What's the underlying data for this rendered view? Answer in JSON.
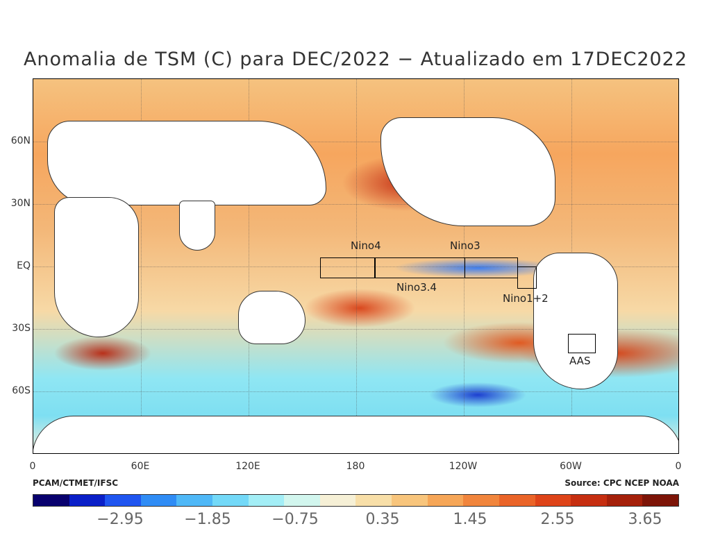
{
  "title": "Anomalia de TSM (C) para DEC/2022 − Atualizado em 17DEC2022",
  "map": {
    "y_ticks": [
      "60N",
      "30N",
      "EQ",
      "30S",
      "60S"
    ],
    "x_ticks": [
      "0",
      "60E",
      "120E",
      "180",
      "120W",
      "60W",
      "0"
    ],
    "regions": [
      "Nino4",
      "Nino3",
      "Nino3.4",
      "Nino1+2",
      "AAS"
    ]
  },
  "credits": {
    "left": "PCAM/CTMET/IFSC",
    "right": "Source: CPC NCEP NOAA"
  },
  "colorbar": {
    "labels": [
      "−2.95",
      "−1.85",
      "−0.75",
      "0.35",
      "1.45",
      "2.55",
      "3.65"
    ],
    "colors": [
      "#08006e",
      "#0a1fc8",
      "#1f55f0",
      "#2f8cf5",
      "#4fb8f7",
      "#73d9f8",
      "#a3eef6",
      "#d2f6ee",
      "#f6f0d6",
      "#f8dfa8",
      "#f8c57c",
      "#f6a657",
      "#f1853c",
      "#ea6428",
      "#de4419",
      "#c62e10",
      "#a5200a",
      "#7d1407"
    ]
  },
  "colors": {
    "land": "#ffffff",
    "cold_anomaly": "#1d3fd0",
    "warm_anomaly": "#c8371a"
  }
}
